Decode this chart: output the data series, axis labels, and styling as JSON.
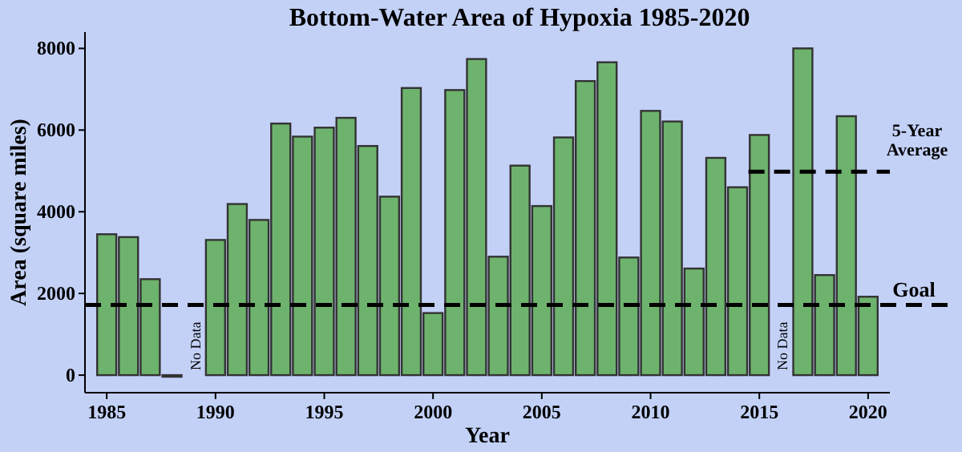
{
  "chart_data": {
    "type": "bar",
    "title": "Bottom-Water Area of Hypoxia 1985-2020",
    "xlabel": "Year",
    "ylabel": "Area (square miles)",
    "x": [
      1985,
      1986,
      1987,
      1988,
      1989,
      1990,
      1991,
      1992,
      1993,
      1994,
      1995,
      1996,
      1997,
      1998,
      1999,
      2000,
      2001,
      2002,
      2003,
      2004,
      2005,
      2006,
      2007,
      2008,
      2009,
      2010,
      2011,
      2012,
      2013,
      2014,
      2015,
      2016,
      2017,
      2018,
      2019,
      2020
    ],
    "series": [
      {
        "color": "#6db36d",
        "values": [
          3450,
          3380,
          2350,
          0,
          null,
          3310,
          4190,
          3800,
          6160,
          5840,
          6060,
          6300,
          5610,
          4370,
          7030,
          1520,
          6980,
          7740,
          2900,
          5130,
          4140,
          5820,
          7200,
          7660,
          2880,
          6470,
          6210,
          2610,
          5320,
          4600,
          5880,
          null,
          8000,
          2450,
          6340,
          1920
        ]
      },
      {
        "type": "line",
        "name": "5-Year Average",
        "color": "#000000",
        "line_style": "dashed",
        "x": [
          2014.5,
          2021
        ],
        "values": [
          4980,
          4980
        ]
      }
    ],
    "ref_lines": [
      {
        "axis": "y",
        "value": 1720,
        "label": "Goal",
        "color": "#000000",
        "line_style": "dashed"
      }
    ],
    "annotations": [
      "No Data",
      "No Data"
    ],
    "xlim": [
      1984,
      2021
    ],
    "xticks": [
      1985,
      1990,
      1995,
      2000,
      2005,
      2010,
      2015,
      2020
    ],
    "ylim": [
      -430,
      8400
    ],
    "yticks": [
      0,
      2000,
      4000,
      6000,
      8000
    ],
    "grid": false
  }
}
